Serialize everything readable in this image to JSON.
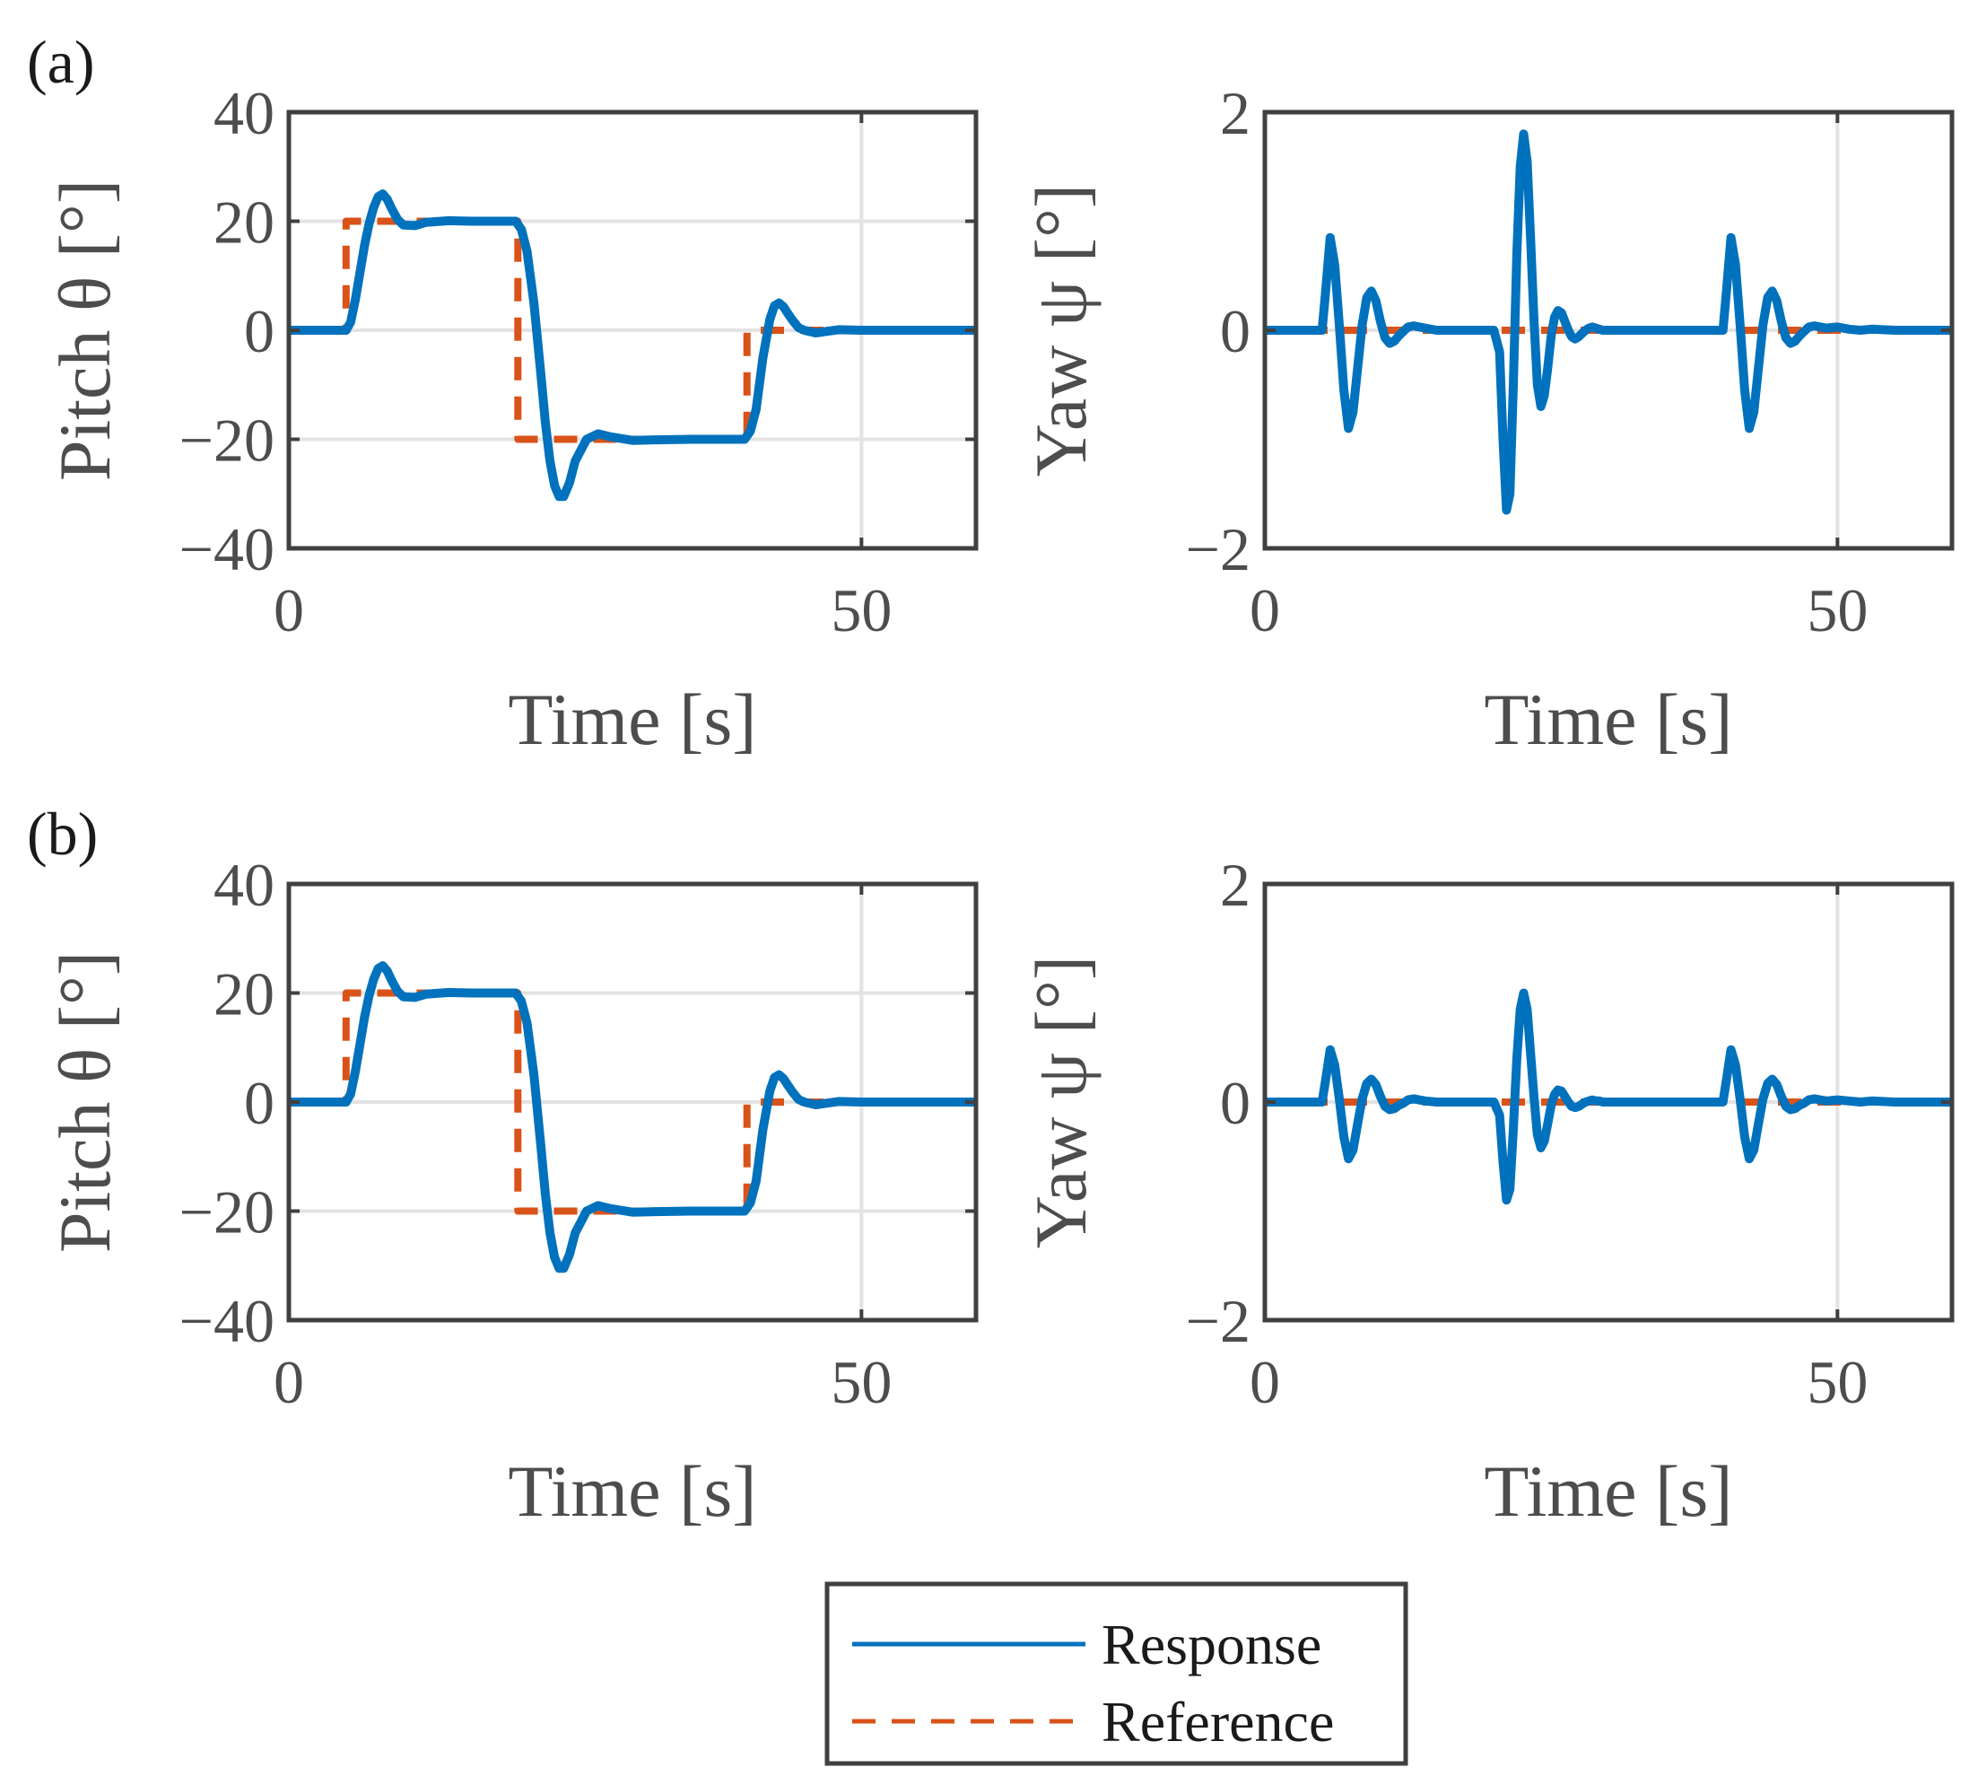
{
  "colors": {
    "response": "#0072BD",
    "reference": "#D95319",
    "axis": "#404040",
    "grid": "#e3e3e3",
    "tick_text": "#4d4d4d"
  },
  "legend": {
    "entries": [
      {
        "label": "Response",
        "style": "solid",
        "color": "#0072BD"
      },
      {
        "label": "Reference",
        "style": "dashed",
        "color": "#D95319"
      }
    ]
  },
  "chart_data": [
    {
      "id": "a-pitch",
      "panel_label": "(a)",
      "type": "line",
      "xlabel": "Time [s]",
      "ylabel": "Pitch θ [°]",
      "xlim": [
        0,
        60
      ],
      "ylim": [
        -40,
        40
      ],
      "xticks": [
        0,
        50
      ],
      "yticks": [
        -40,
        -20,
        0,
        20,
        40
      ],
      "ytick_labels": [
        "−40",
        "−20",
        "0",
        "20",
        "40"
      ],
      "grid": true,
      "series": [
        {
          "name": "Response",
          "style": "solid",
          "x": [
            0,
            5,
            5.4,
            5.8,
            6.2,
            6.6,
            7.0,
            7.4,
            7.8,
            8.2,
            8.6,
            9.0,
            9.5,
            10,
            11,
            12,
            14,
            16,
            19.8,
            20.3,
            20.8,
            21.4,
            22.0,
            22.4,
            22.8,
            23.2,
            23.6,
            24.0,
            24.5,
            25,
            26,
            27,
            28,
            30,
            32,
            35,
            39.8,
            40.3,
            40.8,
            41.4,
            42.0,
            42.4,
            42.8,
            43.2,
            43.6,
            44.0,
            44.5,
            45,
            46,
            47,
            48,
            50,
            60
          ],
          "y": [
            0,
            0,
            1.5,
            5.5,
            10.5,
            15.5,
            19.5,
            22.5,
            24.5,
            25.0,
            24.0,
            22.2,
            20.3,
            19.3,
            19.2,
            19.8,
            20.1,
            20,
            20,
            18.5,
            14.5,
            5,
            -8,
            -17,
            -24,
            -28.5,
            -30.5,
            -30.5,
            -28,
            -24,
            -20,
            -19,
            -19.5,
            -20.2,
            -20.1,
            -20,
            -20,
            -18.5,
            -14.5,
            -5,
            2,
            4.5,
            5,
            4.3,
            3,
            1.8,
            0.5,
            0,
            -0.5,
            -0.2,
            0.1,
            0,
            0
          ]
        },
        {
          "name": "Reference",
          "style": "dashed",
          "x": [
            0,
            5,
            5,
            20,
            20,
            40,
            40,
            60
          ],
          "y": [
            0,
            0,
            20,
            20,
            -20,
            -20,
            0,
            0
          ]
        }
      ]
    },
    {
      "id": "a-yaw",
      "type": "line",
      "xlabel": "Time [s]",
      "ylabel": "Yaw ψ [°]",
      "xlim": [
        0,
        60
      ],
      "ylim": [
        -2,
        2
      ],
      "xticks": [
        0,
        50
      ],
      "yticks": [
        -2,
        0,
        2
      ],
      "ytick_labels": [
        "−2",
        "0",
        "2"
      ],
      "grid": true,
      "series": [
        {
          "name": "Response",
          "style": "solid",
          "x": [
            0,
            5,
            5.3,
            5.7,
            6.1,
            6.5,
            6.9,
            7.3,
            7.7,
            8.1,
            8.5,
            8.9,
            9.3,
            9.7,
            10.1,
            10.5,
            10.9,
            11.3,
            11.7,
            12.1,
            12.5,
            13,
            14,
            15,
            16,
            17,
            18,
            19,
            20,
            20.5,
            20.8,
            21.1,
            21.4,
            21.7,
            22.0,
            22.3,
            22.6,
            22.9,
            23.2,
            23.5,
            23.8,
            24.1,
            24.4,
            24.7,
            25.0,
            25.3,
            25.6,
            25.9,
            26.2,
            26.5,
            26.8,
            27.1,
            27.4,
            27.7,
            28.0,
            28.3,
            28.6,
            28.9,
            29.2,
            29.5,
            30,
            31,
            32,
            34,
            36,
            38,
            40,
            40.3,
            40.7,
            41.1,
            41.5,
            41.9,
            42.3,
            42.7,
            43.1,
            43.5,
            43.9,
            44.3,
            44.7,
            45.1,
            45.5,
            45.9,
            46.3,
            46.7,
            47.1,
            47.5,
            48,
            49,
            50,
            51,
            52,
            53,
            55,
            60
          ],
          "y": [
            0,
            0,
            0.35,
            0.85,
            0.6,
            0.05,
            -0.55,
            -0.9,
            -0.75,
            -0.35,
            0.05,
            0.3,
            0.36,
            0.27,
            0.08,
            -0.07,
            -0.12,
            -0.1,
            -0.05,
            -0.01,
            0.03,
            0.04,
            0.02,
            0,
            0,
            0,
            0,
            0,
            0,
            -0.2,
            -1.0,
            -1.65,
            -1.5,
            -0.5,
            0.7,
            1.5,
            1.8,
            1.55,
            0.85,
            0.1,
            -0.5,
            -0.7,
            -0.6,
            -0.35,
            -0.05,
            0.12,
            0.18,
            0.16,
            0.08,
            0.0,
            -0.06,
            -0.08,
            -0.06,
            -0.03,
            0.0,
            0.02,
            0.03,
            0.02,
            0.01,
            0,
            0,
            0,
            0,
            0,
            0,
            0,
            0,
            0.35,
            0.85,
            0.6,
            0.05,
            -0.55,
            -0.9,
            -0.75,
            -0.35,
            0.05,
            0.3,
            0.36,
            0.27,
            0.08,
            -0.07,
            -0.12,
            -0.1,
            -0.05,
            -0.01,
            0.03,
            0.04,
            0.02,
            0.03,
            0.01,
            0,
            0.01,
            0,
            0
          ]
        },
        {
          "name": "Reference",
          "style": "dashed",
          "x": [
            0,
            60
          ],
          "y": [
            0,
            0
          ]
        }
      ]
    },
    {
      "id": "b-pitch",
      "panel_label": "(b)",
      "type": "line",
      "xlabel": "Time [s]",
      "ylabel": "Pitch θ [°]",
      "xlim": [
        0,
        60
      ],
      "ylim": [
        -40,
        40
      ],
      "xticks": [
        0,
        50
      ],
      "yticks": [
        -40,
        -20,
        0,
        20,
        40
      ],
      "ytick_labels": [
        "−40",
        "−20",
        "0",
        "20",
        "40"
      ],
      "grid": true,
      "series": [
        {
          "name": "Response",
          "style": "solid",
          "x": [
            0,
            5,
            5.4,
            5.8,
            6.2,
            6.6,
            7.0,
            7.4,
            7.8,
            8.2,
            8.6,
            9.0,
            9.5,
            10,
            11,
            12,
            14,
            16,
            19.8,
            20.3,
            20.8,
            21.4,
            22.0,
            22.4,
            22.8,
            23.2,
            23.6,
            24.0,
            24.5,
            25,
            26,
            27,
            28,
            30,
            32,
            35,
            39.8,
            40.3,
            40.8,
            41.4,
            42.0,
            42.4,
            42.8,
            43.2,
            43.6,
            44.0,
            44.5,
            45,
            46,
            47,
            48,
            50,
            60
          ],
          "y": [
            0,
            0,
            1.5,
            5.5,
            10.5,
            15.5,
            19.5,
            22.5,
            24.5,
            25.0,
            24.0,
            22.2,
            20.3,
            19.3,
            19.2,
            19.8,
            20.1,
            20,
            20,
            18.5,
            14.5,
            5,
            -8,
            -17,
            -24,
            -28.5,
            -30.5,
            -30.5,
            -28,
            -24,
            -20,
            -19,
            -19.5,
            -20.2,
            -20.1,
            -20,
            -20,
            -18.5,
            -14.5,
            -5,
            2,
            4.5,
            5,
            4.3,
            3,
            1.8,
            0.5,
            0,
            -0.5,
            -0.2,
            0.1,
            0,
            0
          ]
        },
        {
          "name": "Reference",
          "style": "dashed",
          "x": [
            0,
            5,
            5,
            20,
            20,
            40,
            40,
            60
          ],
          "y": [
            0,
            0,
            20,
            20,
            -20,
            -20,
            0,
            0
          ]
        }
      ]
    },
    {
      "id": "b-yaw",
      "type": "line",
      "xlabel": "Time [s]",
      "ylabel": "Yaw ψ [°]",
      "xlim": [
        0,
        60
      ],
      "ylim": [
        -2,
        2
      ],
      "xticks": [
        0,
        50
      ],
      "yticks": [
        -2,
        0,
        2
      ],
      "ytick_labels": [
        "−2",
        "0",
        "2"
      ],
      "grid": true,
      "series": [
        {
          "name": "Response",
          "style": "solid",
          "x": [
            0,
            5,
            5.3,
            5.7,
            6.1,
            6.5,
            6.9,
            7.3,
            7.7,
            8.1,
            8.5,
            8.9,
            9.3,
            9.7,
            10.1,
            10.5,
            10.9,
            11.3,
            11.7,
            12.1,
            12.5,
            13,
            14,
            15,
            16,
            17,
            18,
            19,
            20,
            20.5,
            20.8,
            21.1,
            21.4,
            21.7,
            22.0,
            22.3,
            22.6,
            22.9,
            23.2,
            23.5,
            23.8,
            24.1,
            24.4,
            24.7,
            25.0,
            25.3,
            25.6,
            25.9,
            26.2,
            26.5,
            26.8,
            27.1,
            27.4,
            27.7,
            28.0,
            28.3,
            28.6,
            28.9,
            29.2,
            29.5,
            30,
            31,
            32,
            34,
            36,
            38,
            40,
            40.3,
            40.7,
            41.1,
            41.5,
            41.9,
            42.3,
            42.7,
            43.1,
            43.5,
            43.9,
            44.3,
            44.7,
            45.1,
            45.5,
            45.9,
            46.3,
            46.7,
            47.1,
            47.5,
            48,
            49,
            50,
            51,
            52,
            53,
            55,
            60
          ],
          "y": [
            0,
            0,
            0.2,
            0.48,
            0.34,
            0.03,
            -0.32,
            -0.52,
            -0.44,
            -0.2,
            0.03,
            0.17,
            0.21,
            0.16,
            0.05,
            -0.04,
            -0.07,
            -0.06,
            -0.03,
            -0.01,
            0.02,
            0.03,
            0.01,
            0,
            0,
            0,
            0,
            0,
            0,
            -0.12,
            -0.55,
            -0.9,
            -0.8,
            -0.25,
            0.4,
            0.85,
            1.0,
            0.85,
            0.45,
            0.05,
            -0.3,
            -0.42,
            -0.36,
            -0.2,
            -0.03,
            0.07,
            0.11,
            0.1,
            0.05,
            0.0,
            -0.04,
            -0.05,
            -0.04,
            -0.02,
            0.0,
            0.01,
            0.02,
            0.01,
            0.01,
            0,
            0,
            0,
            0,
            0,
            0,
            0,
            0,
            0.2,
            0.48,
            0.34,
            0.03,
            -0.32,
            -0.52,
            -0.44,
            -0.2,
            0.03,
            0.17,
            0.21,
            0.16,
            0.05,
            -0.04,
            -0.07,
            -0.06,
            -0.03,
            -0.01,
            0.02,
            0.03,
            0.01,
            0.02,
            0.01,
            0,
            0.01,
            0,
            0
          ]
        },
        {
          "name": "Reference",
          "style": "dashed",
          "x": [
            0,
            60
          ],
          "y": [
            0,
            0
          ]
        }
      ]
    }
  ]
}
